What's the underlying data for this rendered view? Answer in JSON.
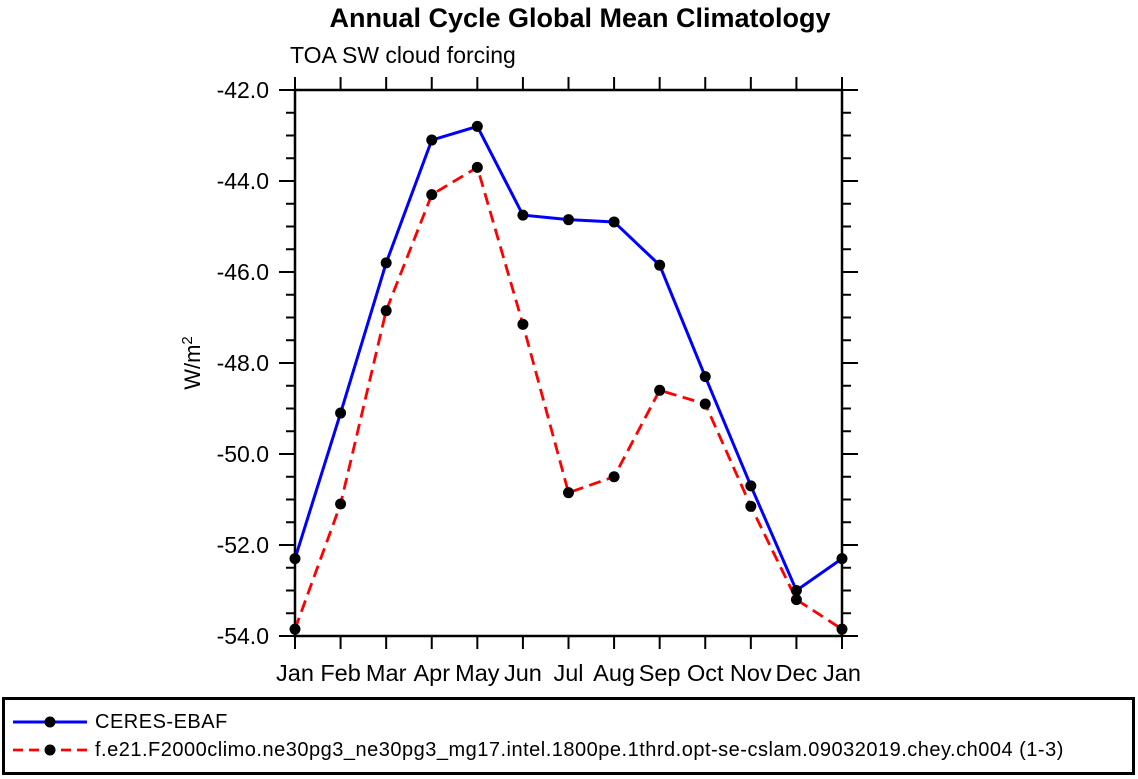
{
  "title": "Annual Cycle Global Mean Climatology",
  "subtitle": "TOA SW cloud forcing",
  "chart_data": {
    "type": "line",
    "categories": [
      "Jan",
      "Feb",
      "Mar",
      "Apr",
      "May",
      "Jun",
      "Jul",
      "Aug",
      "Sep",
      "Oct",
      "Nov",
      "Dec",
      "Jan"
    ],
    "ylabel": {
      "base": "W/m",
      "sup": "2"
    },
    "ylim": [
      -54.0,
      -42.0
    ],
    "ytick_labels": [
      "-42.0",
      "-44.0",
      "-46.0",
      "-48.0",
      "-50.0",
      "-52.0",
      "-54.0"
    ],
    "ytick_step_major": 2.0,
    "ytick_step_minor": 0.5,
    "grid": false,
    "legend_position": "bottom-box",
    "series": [
      {
        "name": "CERES-EBAF",
        "color": "#0000ff",
        "line_style": "solid",
        "line_width": 3,
        "marker": "circle",
        "marker_color": "#000000",
        "values": [
          -52.3,
          -49.1,
          -45.8,
          -43.1,
          -42.8,
          -44.75,
          -44.85,
          -44.9,
          -45.85,
          -48.3,
          -50.7,
          -53.0,
          -52.3
        ]
      },
      {
        "name": "f.e21.F2000climo.ne30pg3_ne30pg3_mg17.intel.1800pe.1thrd.opt-se-cslam.09032019.chey.ch004 (1-3)",
        "color": "#ff0000",
        "line_style": "dashed",
        "line_width": 2.8,
        "marker": "circle",
        "marker_color": "#000000",
        "values": [
          -53.85,
          -51.1,
          -46.85,
          -44.3,
          -43.7,
          -47.15,
          -50.85,
          -50.5,
          -48.6,
          -48.9,
          -51.15,
          -53.2,
          -53.85
        ]
      }
    ]
  }
}
